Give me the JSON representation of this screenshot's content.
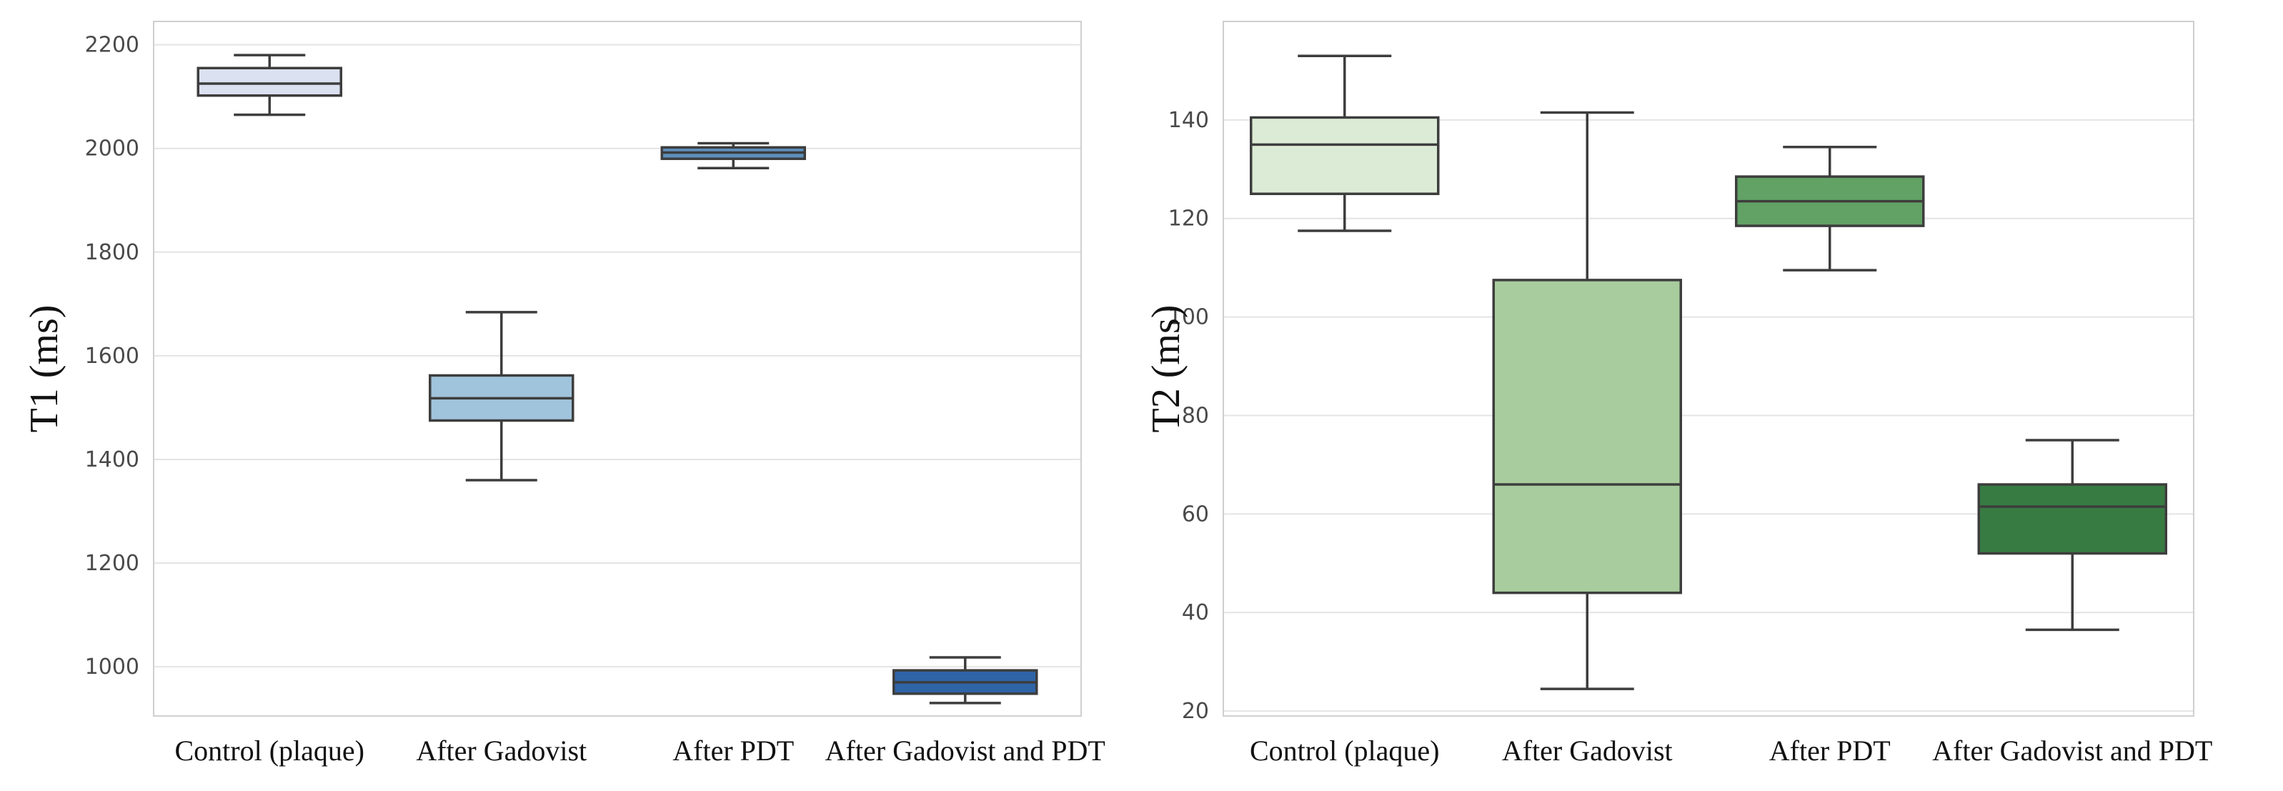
{
  "chart_data": [
    {
      "type": "box",
      "ylabel": "T1 (ms)",
      "xlabel": "",
      "ylim": [
        905,
        2245
      ],
      "yticks": [
        1000,
        1200,
        1400,
        1600,
        1800,
        2000,
        2200
      ],
      "categories": [
        "Control (plaque)",
        "After Gadovist",
        "After PDT",
        "After Gadovist and PDT"
      ],
      "boxes": [
        {
          "min": 2065,
          "q1": 2102,
          "median": 2125,
          "q3": 2155,
          "max": 2180,
          "color": "#dbe1f0"
        },
        {
          "min": 1360,
          "q1": 1475,
          "median": 1518,
          "q3": 1562,
          "max": 1684,
          "color": "#a0c4dc"
        },
        {
          "min": 1962,
          "q1": 1980,
          "median": 1992,
          "q3": 2002,
          "max": 2010,
          "color": "#5d8fbd"
        },
        {
          "min": 930,
          "q1": 948,
          "median": 970,
          "q3": 993,
          "max": 1018,
          "color": "#2f64a7"
        }
      ]
    },
    {
      "type": "box",
      "ylabel": "T2 (ms)",
      "xlabel": "",
      "ylim": [
        19,
        160
      ],
      "yticks": [
        20,
        40,
        60,
        80,
        100,
        120,
        140
      ],
      "categories": [
        "Control (plaque)",
        "After Gadovist",
        "After PDT",
        "After Gadovist and PDT"
      ],
      "boxes": [
        {
          "min": 117.5,
          "q1": 125,
          "median": 135,
          "q3": 140.5,
          "max": 153,
          "color": "#dcebd5"
        },
        {
          "min": 24.5,
          "q1": 44,
          "median": 66,
          "q3": 107.5,
          "max": 141.5,
          "color": "#a8cc9e"
        },
        {
          "min": 109.5,
          "q1": 118.5,
          "median": 123.5,
          "q3": 128.5,
          "max": 134.5,
          "color": "#62a265"
        },
        {
          "min": 36.5,
          "q1": 52,
          "median": 61.5,
          "q3": 66,
          "max": 75,
          "color": "#377b42"
        }
      ]
    }
  ]
}
